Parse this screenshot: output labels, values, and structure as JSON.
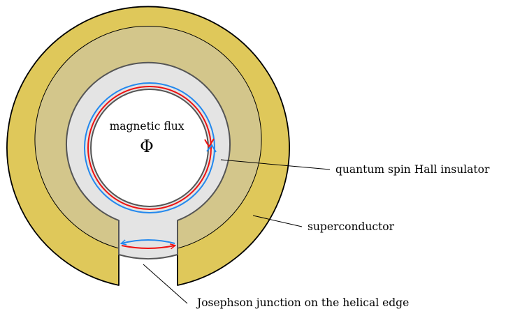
{
  "diagram": {
    "labels": {
      "flux": "magnetic flux",
      "flux_symbol": "Φ",
      "qsh": "quantum spin Hall insulator",
      "superconductor": "superconductor",
      "junction": "Josephson junction on the helical edge"
    },
    "colors": {
      "superconductor_outer": "#dfc85a",
      "superconductor_inner": "#d3c68b",
      "insulator": "#e4e4e4",
      "hole": "#ffffff",
      "edge_red": "#ee1111",
      "edge_blue": "#2288ee",
      "outline": "#000000"
    }
  }
}
